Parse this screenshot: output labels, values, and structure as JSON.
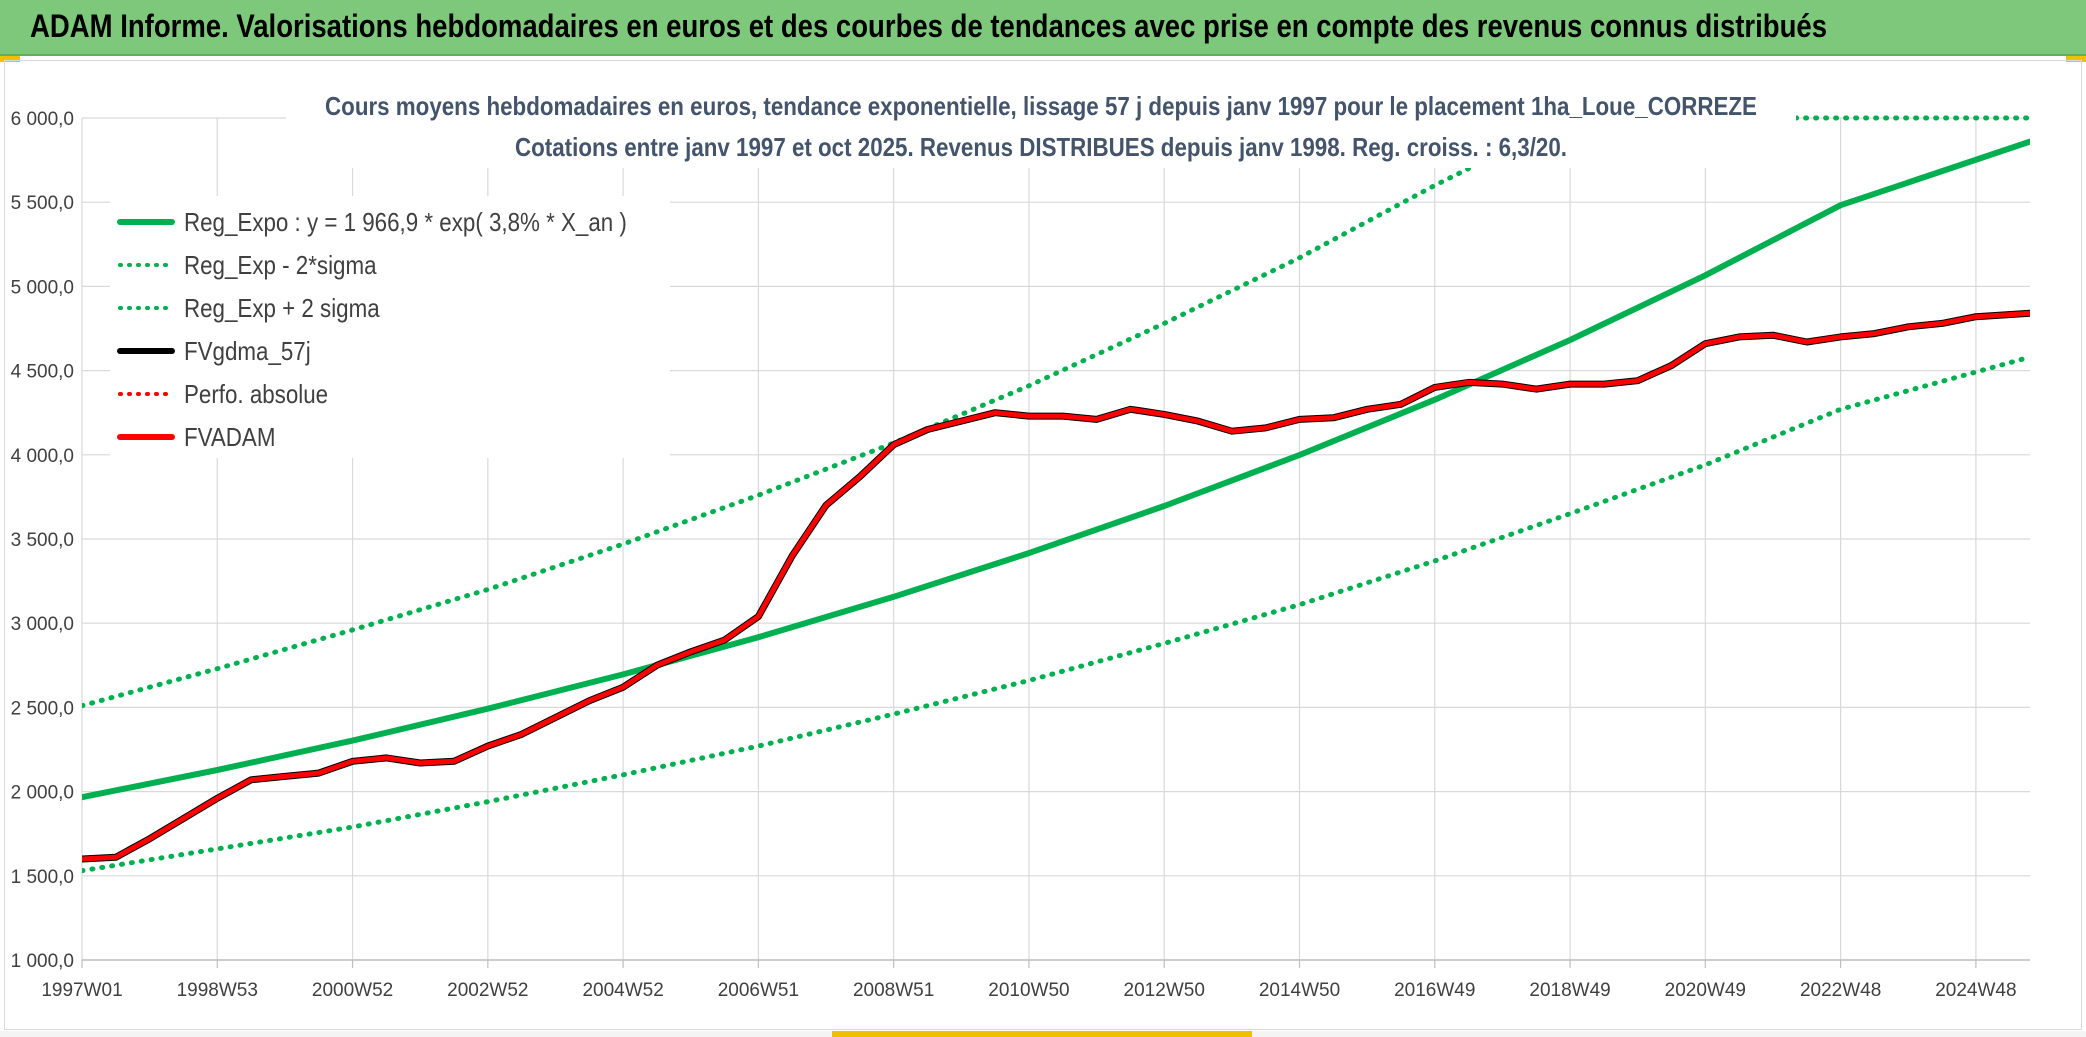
{
  "header": {
    "title": "ADAM Informe. Valorisations hebdomadaires en euros et des courbes de tendances avec prise en compte des revenus connus distribués"
  },
  "colors": {
    "header_bg": "#7dc87a",
    "trend_green": "#00b050",
    "series_black": "#000000",
    "series_red": "#ff0000"
  },
  "chart_data": {
    "type": "line",
    "title_line1": "Cours moyens hebdomadaires en euros, tendance exponentielle, lissage 57 j depuis janv 1997 pour le placement 1ha_Loue_CORREZE",
    "title_line2": "Cotations entre janv 1997 et oct 2025. Revenus DISTRIBUES depuis janv 1998. Reg. croiss. : 6,3/20.",
    "ylim": [
      1000,
      6000
    ],
    "y_ticks": [
      "1 000,0",
      "1 500,0",
      "2 000,0",
      "2 500,0",
      "3 000,0",
      "3 500,0",
      "4 000,0",
      "4 500,0",
      "5 000,0",
      "5 500,0",
      "6 000,0"
    ],
    "xlim": [
      1997.0,
      2025.8
    ],
    "x_tick_labels": [
      "1997W01",
      "1998W53",
      "2000W52",
      "2002W52",
      "2004W52",
      "2006W51",
      "2008W51",
      "2010W50",
      "2012W50",
      "2014W50",
      "2016W49",
      "2018W49",
      "2020W49",
      "2022W48",
      "2024W48"
    ],
    "grid": true,
    "legend_position": "top-left",
    "legend": [
      {
        "label": "Reg_Expo : y = 1 966,9 * exp( 3,8% *  X_an )",
        "color": "#00b050",
        "style": "solid"
      },
      {
        "label": "Reg_Exp - 2*sigma",
        "color": "#00b050",
        "style": "dotted"
      },
      {
        "label": "Reg_Exp + 2 sigma",
        "color": "#00b050",
        "style": "dotted"
      },
      {
        "label": "FVgdma_57j",
        "color": "#000000",
        "style": "solid"
      },
      {
        "label": "Perfo. absolue",
        "color": "#ff0000",
        "style": "dotted"
      },
      {
        "label": "FVADAM",
        "color": "#ff0000",
        "style": "solid"
      }
    ],
    "series": [
      {
        "name": "Reg_Expo : y = 1 966,9 * exp( 3,8% *  X_an )",
        "x": [
          1997.0,
          1999.0,
          2001.0,
          2003.0,
          2005.0,
          2007.0,
          2009.0,
          2011.0,
          2013.0,
          2015.0,
          2017.0,
          2019.0,
          2021.0,
          2023.0,
          2025.8
        ],
        "values": [
          1967,
          2128,
          2303,
          2492,
          2696,
          2917,
          3157,
          3416,
          3696,
          3999,
          4327,
          4682,
          5066,
          5482,
          5860
        ]
      },
      {
        "name": "Reg_Exp - 2*sigma",
        "x": [
          1997.0,
          1999.0,
          2001.0,
          2003.0,
          2005.0,
          2007.0,
          2009.0,
          2011.0,
          2013.0,
          2015.0,
          2017.0,
          2019.0,
          2021.0,
          2023.0,
          2025.8
        ],
        "values": [
          1530,
          1660,
          1790,
          1940,
          2100,
          2270,
          2460,
          2660,
          2880,
          3110,
          3370,
          3650,
          3940,
          4270,
          4580
        ]
      },
      {
        "name": "Reg_Exp + 2 sigma",
        "x": [
          1997.0,
          1999.0,
          2001.0,
          2003.0,
          2005.0,
          2007.0,
          2009.0,
          2011.0,
          2013.0,
          2015.0,
          2017.0,
          2019.0,
          2021.0,
          2023.0,
          2025.8
        ],
        "values": [
          2510,
          2730,
          2960,
          3200,
          3470,
          3760,
          4070,
          4410,
          4780,
          5170,
          5600,
          6000,
          6000,
          6000,
          6000
        ]
      },
      {
        "name": "FVgdma_57j",
        "x": [
          1997.0,
          1997.5,
          1998.0,
          1998.5,
          1999.0,
          1999.5,
          2000.0,
          2000.5,
          2001.0,
          2001.5,
          2002.0,
          2002.5,
          2003.0,
          2003.5,
          2004.0,
          2004.5,
          2005.0,
          2005.5,
          2006.0,
          2006.5,
          2007.0,
          2007.5,
          2008.0,
          2008.5,
          2009.0,
          2009.5,
          2010.0,
          2010.5,
          2011.0,
          2011.5,
          2012.0,
          2012.5,
          2013.0,
          2013.5,
          2014.0,
          2014.5,
          2015.0,
          2015.5,
          2016.0,
          2016.5,
          2017.0,
          2017.5,
          2018.0,
          2018.5,
          2019.0,
          2019.5,
          2020.0,
          2020.5,
          2021.0,
          2021.5,
          2022.0,
          2022.5,
          2023.0,
          2023.5,
          2024.0,
          2024.5,
          2025.0,
          2025.8
        ],
        "values": [
          1600,
          1610,
          1720,
          1840,
          1960,
          2070,
          2090,
          2110,
          2180,
          2200,
          2170,
          2180,
          2270,
          2340,
          2440,
          2540,
          2620,
          2750,
          2830,
          2900,
          3040,
          3400,
          3700,
          3870,
          4060,
          4150,
          4200,
          4250,
          4230,
          4230,
          4210,
          4270,
          4240,
          4200,
          4140,
          4160,
          4210,
          4220,
          4270,
          4300,
          4400,
          4430,
          4420,
          4390,
          4420,
          4420,
          4440,
          4530,
          4660,
          4700,
          4710,
          4670,
          4700,
          4720,
          4760,
          4780,
          4820,
          4840
        ]
      },
      {
        "name": "FVADAM",
        "x": [
          1997.0,
          1997.5,
          1998.0,
          1998.5,
          1999.0,
          1999.5,
          2000.0,
          2000.5,
          2001.0,
          2001.5,
          2002.0,
          2002.5,
          2003.0,
          2003.5,
          2004.0,
          2004.5,
          2005.0,
          2005.5,
          2006.0,
          2006.5,
          2007.0,
          2007.5,
          2008.0,
          2008.5,
          2009.0,
          2009.5,
          2010.0,
          2010.5,
          2011.0,
          2011.5,
          2012.0,
          2012.5,
          2013.0,
          2013.5,
          2014.0,
          2014.5,
          2015.0,
          2015.5,
          2016.0,
          2016.5,
          2017.0,
          2017.5,
          2018.0,
          2018.5,
          2019.0,
          2019.5,
          2020.0,
          2020.5,
          2021.0,
          2021.5,
          2022.0,
          2022.5,
          2023.0,
          2023.5,
          2024.0,
          2024.5,
          2025.0,
          2025.8
        ],
        "values": [
          1600,
          1610,
          1720,
          1840,
          1960,
          2070,
          2090,
          2110,
          2180,
          2200,
          2170,
          2180,
          2270,
          2340,
          2440,
          2540,
          2620,
          2750,
          2830,
          2900,
          3040,
          3400,
          3700,
          3870,
          4060,
          4150,
          4200,
          4250,
          4230,
          4230,
          4210,
          4270,
          4240,
          4200,
          4140,
          4160,
          4210,
          4220,
          4270,
          4300,
          4400,
          4430,
          4420,
          4390,
          4420,
          4420,
          4440,
          4530,
          4660,
          4700,
          4710,
          4670,
          4700,
          4720,
          4760,
          4780,
          4820,
          4840
        ]
      }
    ]
  }
}
